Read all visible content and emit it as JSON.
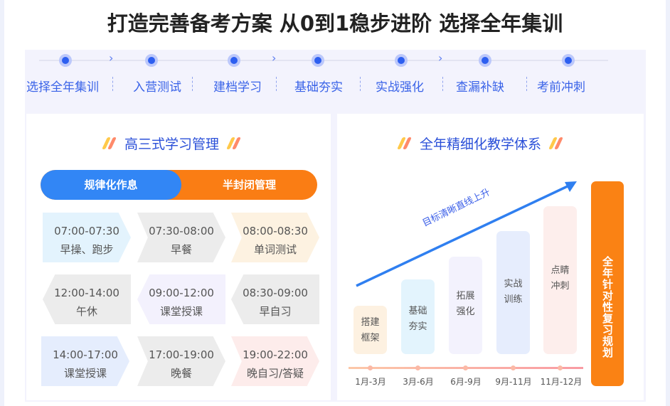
{
  "title": "打造完善备考方案 从0到1稳步进阶 选择全年集训",
  "steps": [
    "选择全年集训",
    "入营测试",
    "建档学习",
    "基础夯实",
    "实战强化",
    "查漏补缺",
    "考前冲刺"
  ],
  "left_card": {
    "heading": "高三式学习管理",
    "toggle": {
      "left": "规律化作息",
      "right": "半封闭管理"
    },
    "schedule": [
      {
        "time": "07:00-07:30",
        "activity": "早操、跑步"
      },
      {
        "time": "07:30-08:00",
        "activity": "早餐"
      },
      {
        "time": "08:00-08:30",
        "activity": "单词测试"
      },
      {
        "time": "12:00-14:00",
        "activity": "午休"
      },
      {
        "time": "09:00-12:00",
        "activity": "课堂授课"
      },
      {
        "time": "08:30-09:00",
        "activity": "早自习"
      },
      {
        "time": "14:00-17:00",
        "activity": "课堂授课"
      },
      {
        "time": "17:00-19:00",
        "activity": "晚餐"
      },
      {
        "time": "19:00-22:00",
        "activity": "晚自习/答疑"
      }
    ]
  },
  "right_card": {
    "heading": "全年精细化教学体系",
    "arrow_label": "目标清晰直线上升",
    "stages": [
      {
        "name": "搭建框架",
        "period": "1月-3月"
      },
      {
        "name": "基础夯实",
        "period": "3月-6月"
      },
      {
        "name": "拓展强化",
        "period": "6月-9月"
      },
      {
        "name": "实战训练",
        "period": "9月-11月"
      },
      {
        "name": "点睛冲刺",
        "period": "11月-12月"
      }
    ],
    "side_banner": "全年针对性复习规划"
  },
  "colors": {
    "blue": "#3286f5",
    "orange": "#fa8214",
    "step_text": "#3a63e8"
  }
}
